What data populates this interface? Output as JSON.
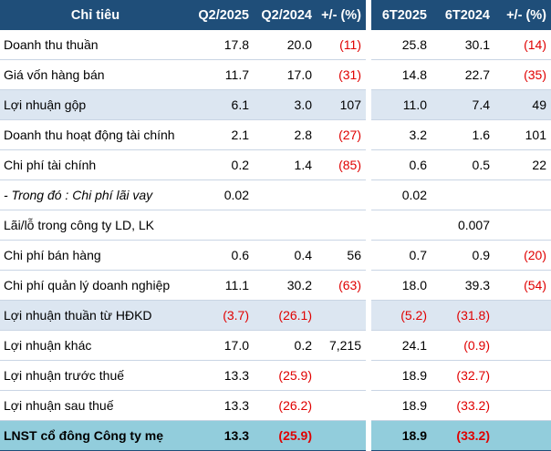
{
  "table": {
    "header": [
      "Chỉ tiêu",
      "Q2/2025",
      "Q2/2024",
      "+/- (%)",
      "6T2025",
      "6T2024",
      "+/- (%)"
    ],
    "rows": [
      {
        "label": "Doanh thu thuần",
        "cells": [
          "17.8",
          "20.0",
          "(11)",
          "25.8",
          "30.1",
          "(14)"
        ],
        "style": ""
      },
      {
        "label": "Giá vốn hàng bán",
        "cells": [
          "11.7",
          "17.0",
          "(31)",
          "14.8",
          "22.7",
          "(35)"
        ],
        "style": ""
      },
      {
        "label": "Lợi nhuận gộp",
        "cells": [
          "6.1",
          "3.0",
          "107",
          "11.0",
          "7.4",
          "49"
        ],
        "style": "hl-light"
      },
      {
        "label": "Doanh thu hoạt động tài chính",
        "cells": [
          "2.1",
          "2.8",
          "(27)",
          "3.2",
          "1.6",
          "101"
        ],
        "style": ""
      },
      {
        "label": "Chi phí tài chính",
        "cells": [
          "0.2",
          "1.4",
          "(85)",
          "0.6",
          "0.5",
          "22"
        ],
        "style": ""
      },
      {
        "label": "- Trong đó : Chi phí lãi vay",
        "cells": [
          "0.02",
          "",
          "",
          "0.02",
          "",
          ""
        ],
        "style": "italic"
      },
      {
        "label": "Lãi/lỗ trong công ty LD, LK",
        "cells": [
          "",
          "",
          "",
          "",
          "0.007",
          ""
        ],
        "style": ""
      },
      {
        "label": "Chi phí bán hàng",
        "cells": [
          "0.6",
          "0.4",
          "56",
          "0.7",
          "0.9",
          "(20)"
        ],
        "style": ""
      },
      {
        "label": "Chi phí quản lý doanh nghiệp",
        "cells": [
          "11.1",
          "30.2",
          "(63)",
          "18.0",
          "39.3",
          "(54)"
        ],
        "style": ""
      },
      {
        "label": "Lợi nhuận thuần từ HĐKD",
        "cells": [
          "(3.7)",
          "(26.1)",
          "",
          "(5.2)",
          "(31.8)",
          ""
        ],
        "style": "hl-light"
      },
      {
        "label": "Lợi nhuận khác",
        "cells": [
          "17.0",
          "0.2",
          "7,215",
          "24.1",
          "(0.9)",
          ""
        ],
        "style": ""
      },
      {
        "label": "Lợi nhuận trước thuế",
        "cells": [
          "13.3",
          "(25.9)",
          "",
          "18.9",
          "(32.7)",
          ""
        ],
        "style": ""
      },
      {
        "label": "Lợi nhuận sau thuế",
        "cells": [
          "13.3",
          "(26.2)",
          "",
          "18.9",
          "(33.2)",
          ""
        ],
        "style": ""
      },
      {
        "label": "LNST cổ đông Công ty mẹ",
        "cells": [
          "13.3",
          "(25.9)",
          "",
          "18.9",
          "(33.2)",
          ""
        ],
        "style": "hl-bold last"
      }
    ]
  },
  "colors": {
    "header_bg": "#1F4E79",
    "highlight_light": "#DCE6F1",
    "highlight_strong": "#92CDDC",
    "negative": "#E00000"
  }
}
